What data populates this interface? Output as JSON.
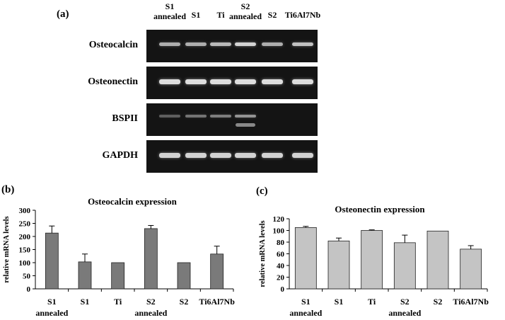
{
  "figure": {
    "panel_a_label": "(a)",
    "panel_b_label": "(b)",
    "panel_c_label": "(c)",
    "lanes": [
      {
        "line1": "S1",
        "line2": "annealed"
      },
      {
        "line1": "S1",
        "line2": ""
      },
      {
        "line1": "Ti",
        "line2": ""
      },
      {
        "line1": "S2",
        "line2": "annealed"
      },
      {
        "line1": "S2",
        "line2": ""
      },
      {
        "line1": "Ti6Al7Nb",
        "line2": ""
      }
    ],
    "gels": [
      {
        "gene": "Osteocalcin",
        "bands": [
          0.72,
          0.72,
          0.78,
          0.9,
          0.72,
          0.82
        ]
      },
      {
        "gene": "Osteonectin",
        "bands": [
          0.95,
          0.95,
          0.95,
          0.95,
          0.95,
          0.95
        ]
      },
      {
        "gene": "BSPII",
        "bands": [
          0.35,
          0.45,
          0.5,
          0.6,
          0.0,
          0.0
        ],
        "extra_band_lane": 3
      },
      {
        "gene": "GAPDH",
        "bands": [
          0.9,
          0.9,
          0.9,
          0.9,
          0.9,
          0.9
        ]
      }
    ],
    "band_color": "#e8e8e8",
    "gel_color": "#141414"
  },
  "chart_data": [
    {
      "type": "bar",
      "title": "Osteocalcin expression",
      "ylabel": "relative mRNA levels",
      "xlabel": "",
      "ylim": [
        0,
        300
      ],
      "yticks": [
        0,
        50,
        100,
        150,
        200,
        250,
        300
      ],
      "categories": [
        {
          "line1": "S1",
          "line2": "annealed"
        },
        {
          "line1": "S1",
          "line2": ""
        },
        {
          "line1": "Ti",
          "line2": ""
        },
        {
          "line1": "S2",
          "line2": "annealed"
        },
        {
          "line1": "S2",
          "line2": ""
        },
        {
          "line1": "Ti6Al7Nb",
          "line2": ""
        }
      ],
      "values": [
        213,
        103,
        100,
        230,
        100,
        133
      ],
      "errors": [
        27,
        30,
        0,
        12,
        0,
        30
      ],
      "bar_color": "#7a7a7a",
      "grid": false
    },
    {
      "type": "bar",
      "title": "Osteonectin expression",
      "ylabel": "relative mRNA levels",
      "xlabel": "",
      "ylim": [
        0,
        120
      ],
      "yticks": [
        0,
        20,
        40,
        60,
        80,
        100,
        120
      ],
      "categories": [
        {
          "line1": "S1",
          "line2": "annealed"
        },
        {
          "line1": "S1",
          "line2": ""
        },
        {
          "line1": "Ti",
          "line2": ""
        },
        {
          "line1": "S2",
          "line2": "annealed"
        },
        {
          "line1": "S2",
          "line2": ""
        },
        {
          "line1": "Ti6Al7Nb",
          "line2": ""
        }
      ],
      "values": [
        105,
        82,
        100,
        79,
        99,
        68
      ],
      "errors": [
        2,
        5,
        1,
        13,
        0,
        6
      ],
      "bar_color": "#c4c4c4",
      "grid": false
    }
  ]
}
